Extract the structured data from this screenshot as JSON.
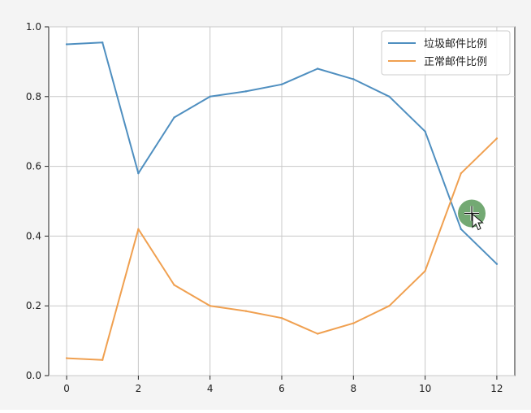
{
  "chart_data": {
    "type": "line",
    "title": "",
    "xlabel": "",
    "ylabel": "",
    "x": [
      0,
      1,
      2,
      3,
      4,
      5,
      6,
      7,
      8,
      9,
      10,
      11,
      12
    ],
    "xlim": [
      -0.5,
      12.5
    ],
    "ylim": [
      0.0,
      1.0
    ],
    "xticks": [
      "0",
      "2",
      "4",
      "6",
      "8",
      "10",
      "12"
    ],
    "yticks": [
      "0.0",
      "0.2",
      "0.4",
      "0.6",
      "0.8",
      "1.0"
    ],
    "grid": true,
    "legend_position": "top-right",
    "series": [
      {
        "name": "垃圾邮件比例",
        "color": "#4f8fc0",
        "values": [
          0.95,
          0.955,
          0.58,
          0.74,
          0.8,
          0.815,
          0.835,
          0.88,
          0.85,
          0.8,
          0.7,
          0.42,
          0.32
        ]
      },
      {
        "name": "正常邮件比例",
        "color": "#f0a050",
        "values": [
          0.05,
          0.045,
          0.42,
          0.26,
          0.2,
          0.185,
          0.165,
          0.12,
          0.15,
          0.2,
          0.3,
          0.58,
          0.68
        ]
      }
    ]
  },
  "cursor": {
    "icon": "move-cursor-icon",
    "highlight_color": "#5a9a5a",
    "x": 11.3,
    "y": 0.465
  }
}
